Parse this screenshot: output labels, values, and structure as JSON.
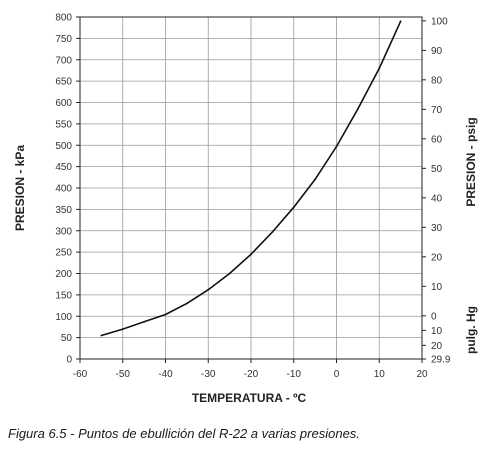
{
  "chart_data": {
    "type": "line",
    "title": "",
    "xlabel": "TEMPERATURA - ºC",
    "ylabel": "PRESION - kPa",
    "ylabel_right_upper": "PRESION - psig",
    "ylabel_right_lower": "pulg. Hg",
    "xlim": [
      -60,
      20
    ],
    "ylim": [
      0,
      800
    ],
    "grid": true,
    "x_ticks": [
      "-60",
      "-50",
      "-40",
      "-30",
      "-20",
      "-10",
      "0",
      "10",
      "20"
    ],
    "y_ticks_left": [
      "0",
      "50",
      "100",
      "150",
      "200",
      "250",
      "300",
      "350",
      "400",
      "450",
      "500",
      "550",
      "600",
      "650",
      "700",
      "750",
      "800"
    ],
    "y_ticks_right": [
      {
        "kpa": 0,
        "label": "29.9"
      },
      {
        "kpa": 32,
        "label": "20"
      },
      {
        "kpa": 67,
        "label": "10"
      },
      {
        "kpa": 101,
        "label": "0"
      },
      {
        "kpa": 170,
        "label": "10"
      },
      {
        "kpa": 239,
        "label": "20"
      },
      {
        "kpa": 308,
        "label": "30"
      },
      {
        "kpa": 377,
        "label": "40"
      },
      {
        "kpa": 446,
        "label": "50"
      },
      {
        "kpa": 515,
        "label": "60"
      },
      {
        "kpa": 584,
        "label": "70"
      },
      {
        "kpa": 653,
        "label": "80"
      },
      {
        "kpa": 722,
        "label": "90"
      },
      {
        "kpa": 791,
        "label": "100"
      }
    ],
    "series": [
      {
        "x": [
          -55,
          -50,
          -45,
          -40,
          -35,
          -30,
          -25,
          -20,
          -15,
          -10,
          -5,
          0,
          5,
          10,
          15
        ],
        "y": [
          55,
          70,
          87,
          104,
          130,
          162,
          200,
          245,
          297,
          355,
          420,
          497,
          585,
          680,
          790
        ]
      }
    ]
  },
  "caption": "Figura 6.5 - Puntos de ebullición del R-22 a varias presiones."
}
